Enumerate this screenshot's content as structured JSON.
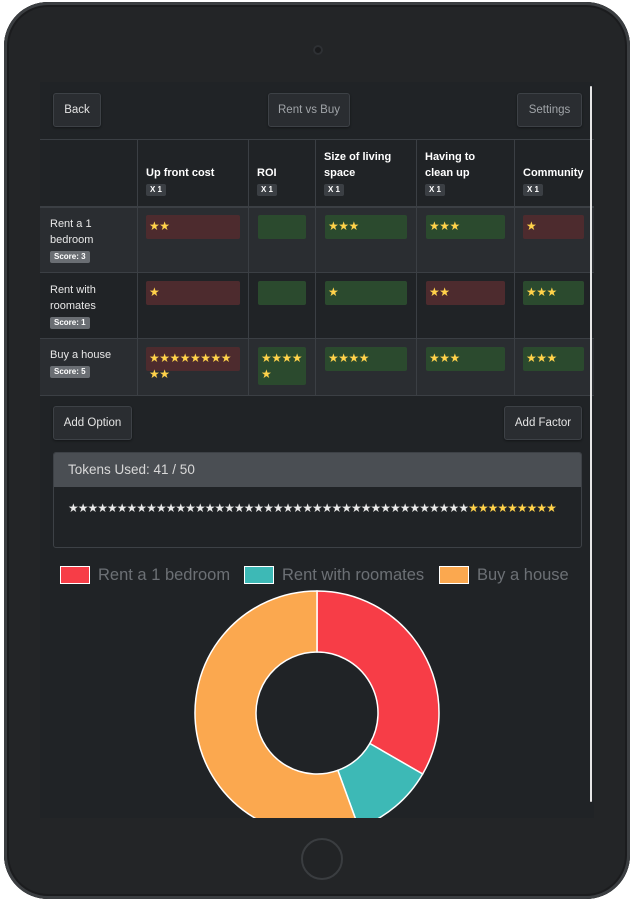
{
  "header": {
    "back_label": "Back",
    "title": "Rent vs Buy",
    "settings_label": "Settings"
  },
  "factors": [
    {
      "name": "Up front cost",
      "multiplier": "X 1"
    },
    {
      "name": "ROI",
      "multiplier": "X 1"
    },
    {
      "name": "Size of living space",
      "multiplier": "X 1"
    },
    {
      "name": "Having to clean up",
      "multiplier": "X 1"
    },
    {
      "name": "Community",
      "multiplier": "X 1"
    }
  ],
  "options": [
    {
      "name": "Rent a 1 bedroom",
      "score": "Score: 3",
      "ratings": [
        {
          "stars": 2,
          "tone": "red"
        },
        {
          "stars": 0,
          "tone": "green"
        },
        {
          "stars": 3,
          "tone": "green"
        },
        {
          "stars": 3,
          "tone": "green"
        },
        {
          "stars": 1,
          "tone": "red"
        }
      ]
    },
    {
      "name": "Rent with roomates",
      "score": "Score: 1",
      "ratings": [
        {
          "stars": 1,
          "tone": "red"
        },
        {
          "stars": 0,
          "tone": "green"
        },
        {
          "stars": 1,
          "tone": "green"
        },
        {
          "stars": 2,
          "tone": "red"
        },
        {
          "stars": 3,
          "tone": "green"
        }
      ]
    },
    {
      "name": "Buy a house",
      "score": "Score: 5",
      "ratings": [
        {
          "stars": 10,
          "tone": "red"
        },
        {
          "stars": 5,
          "tone": "green"
        },
        {
          "stars": 4,
          "tone": "green"
        },
        {
          "stars": 3,
          "tone": "green"
        },
        {
          "stars": 3,
          "tone": "green"
        }
      ]
    }
  ],
  "actions": {
    "add_option_label": "Add Option",
    "add_factor_label": "Add Factor"
  },
  "tokens": {
    "label": "Tokens Used: 41 / 50",
    "used": 41,
    "total": 50
  },
  "colors": {
    "rent_1_bedroom": "#f73d47",
    "rent_roomates": "#3db9b6",
    "buy_house": "#fba84f",
    "star": "#ffd24a",
    "cell_red": "#4d2b2e",
    "cell_green": "#2b4a2e"
  },
  "chart_data": {
    "type": "pie",
    "style": "doughnut",
    "categories": [
      "Rent a 1 bedroom",
      "Rent with roomates",
      "Buy a house"
    ],
    "values": [
      3,
      1,
      5
    ],
    "colors": [
      "#f73d47",
      "#3db9b6",
      "#fba84f"
    ],
    "legend_position": "top"
  }
}
